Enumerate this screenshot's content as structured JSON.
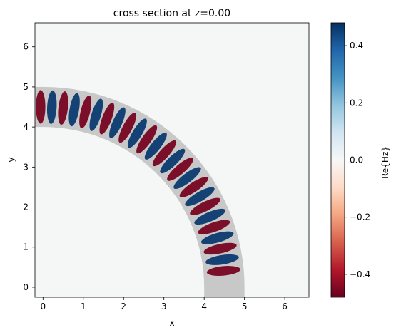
{
  "chart_data": {
    "type": "heatmap",
    "title": "cross section at z=0.00",
    "xlabel": "x",
    "ylabel": "y",
    "xlim": [
      -0.2,
      6.6
    ],
    "ylim": [
      -0.25,
      6.6
    ],
    "x_ticks": [
      0,
      1,
      2,
      3,
      4,
      5,
      6
    ],
    "y_ticks": [
      0,
      1,
      2,
      3,
      4,
      5,
      6
    ],
    "colorbar": {
      "label": "Re{Hz}",
      "range": [
        -0.48,
        0.48
      ],
      "ticks": [
        0.4,
        0.2,
        0.0,
        -0.2,
        -0.4
      ],
      "tick_labels": [
        "0.4",
        "0.2",
        "0.0",
        "−0.2",
        "−0.4"
      ],
      "colormap": "RdBu"
    },
    "structure": {
      "description_type": "waveguide bend",
      "straight_horizontal": {
        "x": [
          -0.2,
          0.0
        ],
        "y": [
          4.0,
          5.0
        ]
      },
      "bend_center": [
        0.0,
        0.0
      ],
      "bend_radii": [
        4.0,
        5.0
      ],
      "straight_vertical": {
        "x": [
          4.0,
          5.0
        ],
        "y": [
          -0.25,
          0.0
        ]
      },
      "fill_color": "#c8c8c8"
    },
    "field": {
      "peak_amplitude": 0.46,
      "wavelength_along_guide": 0.56,
      "decay_start_y": 1.2,
      "decay_end_y": 0.0
    },
    "background_color": "#f5f6f6",
    "grid": false
  }
}
